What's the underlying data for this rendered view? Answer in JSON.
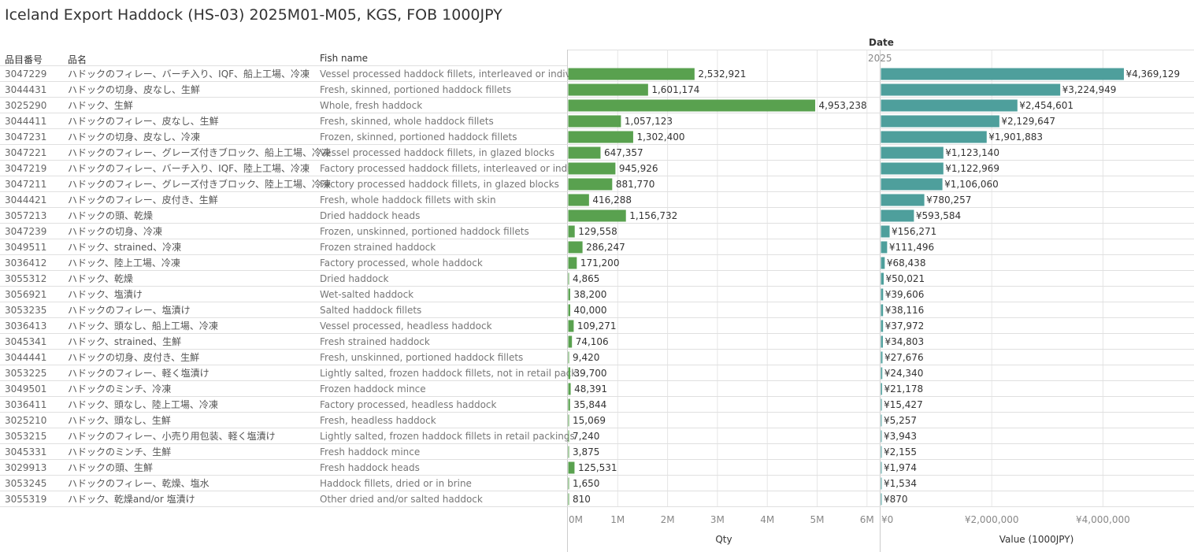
{
  "title": "Iceland Export Haddock (HS-03) 2025M01-M05, KGS, FOB 1000JPY",
  "headers": {
    "code": "品目番号",
    "name_ja": "品名",
    "fish_name": "Fish name",
    "date": "Date",
    "year": "2025"
  },
  "colors": {
    "qty_bar": "#59a14f",
    "value_bar": "#4e9f9c",
    "gridline": "#e6e6e6",
    "row_divider": "#e0e0e0"
  },
  "chart_data": [
    {
      "type": "bar",
      "orientation": "horizontal",
      "xlabel": "Qty",
      "xlim": [
        0,
        6200000
      ],
      "ticks": [
        {
          "v": 0,
          "label": "0M"
        },
        {
          "v": 1000000,
          "label": "1M"
        },
        {
          "v": 2000000,
          "label": "2M"
        },
        {
          "v": 3000000,
          "label": "3M"
        },
        {
          "v": 4000000,
          "label": "4M"
        },
        {
          "v": 5000000,
          "label": "5M"
        },
        {
          "v": 6000000,
          "label": "6M"
        }
      ],
      "grid": true
    },
    {
      "type": "bar",
      "orientation": "horizontal",
      "xlabel": "Value (1000JPY)",
      "xlim": [
        0,
        5600000
      ],
      "ticks": [
        {
          "v": 0,
          "label": "¥0"
        },
        {
          "v": 2000000,
          "label": "¥2,000,000"
        },
        {
          "v": 4000000,
          "label": "¥4,000,000"
        }
      ],
      "grid": true
    }
  ],
  "rows": [
    {
      "code": "3047229",
      "name_ja": "ハドックのフィレー、バーチ入り、IQF、船上工場、冷凍",
      "fish": "Vessel processed haddock fillets, interleaved or indivi..",
      "qty": 2532921,
      "qty_label": "2,532,921",
      "value": 4369129,
      "value_label": "¥4,369,129"
    },
    {
      "code": "3044431",
      "name_ja": "ハドックの切身、皮なし、生鮮",
      "fish": "Fresh, skinned, portioned haddock fillets",
      "qty": 1601174,
      "qty_label": "1,601,174",
      "value": 3224949,
      "value_label": "¥3,224,949"
    },
    {
      "code": "3025290",
      "name_ja": "ハドック、生鮮",
      "fish": "Whole, fresh haddock",
      "qty": 4953238,
      "qty_label": "4,953,238",
      "value": 2454601,
      "value_label": "¥2,454,601"
    },
    {
      "code": "3044411",
      "name_ja": "ハドックのフィレー、皮なし、生鮮",
      "fish": "Fresh, skinned, whole haddock fillets",
      "qty": 1057123,
      "qty_label": "1,057,123",
      "value": 2129647,
      "value_label": "¥2,129,647"
    },
    {
      "code": "3047231",
      "name_ja": "ハドックの切身、皮なし、冷凍",
      "fish": "Frozen, skinned, portioned haddock fillets",
      "qty": 1302400,
      "qty_label": "1,302,400",
      "value": 1901883,
      "value_label": "¥1,901,883"
    },
    {
      "code": "3047221",
      "name_ja": "ハドックのフィレー、グレーズ付きブロック、船上工場、冷凍",
      "fish": "Vessel processed haddock fillets, in glazed blocks",
      "qty": 647357,
      "qty_label": "647,357",
      "value": 1123140,
      "value_label": "¥1,123,140"
    },
    {
      "code": "3047219",
      "name_ja": "ハドックのフィレー、バーチ入り、IQF、陸上工場、冷凍",
      "fish": "Factory processed haddock fillets, interleaved or indiv..",
      "qty": 945926,
      "qty_label": "945,926",
      "value": 1122969,
      "value_label": "¥1,122,969"
    },
    {
      "code": "3047211",
      "name_ja": "ハドックのフィレー、グレーズ付きブロック、陸上工場、冷凍",
      "fish": "Factory processed haddock fillets, in glazed blocks",
      "qty": 881770,
      "qty_label": "881,770",
      "value": 1106060,
      "value_label": "¥1,106,060"
    },
    {
      "code": "3044421",
      "name_ja": "ハドックのフィレー、皮付き、生鮮",
      "fish": "Fresh, whole haddock fillets with skin",
      "qty": 416288,
      "qty_label": "416,288",
      "value": 780257,
      "value_label": "¥780,257"
    },
    {
      "code": "3057213",
      "name_ja": "ハドックの頭、乾燥",
      "fish": "Dried haddock heads",
      "qty": 1156732,
      "qty_label": "1,156,732",
      "value": 593584,
      "value_label": "¥593,584"
    },
    {
      "code": "3047239",
      "name_ja": "ハドックの切身、冷凍",
      "fish": "Frozen, unskinned, portioned haddock fillets",
      "qty": 129558,
      "qty_label": "129,558",
      "value": 156271,
      "value_label": "¥156,271"
    },
    {
      "code": "3049511",
      "name_ja": "ハドック、strained、冷凍",
      "fish": "Frozen strained haddock",
      "qty": 286247,
      "qty_label": "286,247",
      "value": 111496,
      "value_label": "¥111,496"
    },
    {
      "code": "3036412",
      "name_ja": "ハドック、陸上工場、冷凍",
      "fish": "Factory processed, whole haddock",
      "qty": 171200,
      "qty_label": "171,200",
      "value": 68438,
      "value_label": "¥68,438"
    },
    {
      "code": "3055312",
      "name_ja": "ハドック、乾燥",
      "fish": "Dried haddock",
      "qty": 4865,
      "qty_label": "4,865",
      "value": 50021,
      "value_label": "¥50,021"
    },
    {
      "code": "3056921",
      "name_ja": "ハドック、塩漬け",
      "fish": "Wet-salted haddock",
      "qty": 38200,
      "qty_label": "38,200",
      "value": 39606,
      "value_label": "¥39,606"
    },
    {
      "code": "3053235",
      "name_ja": "ハドックのフィレー、塩漬け",
      "fish": "Salted haddock fillets",
      "qty": 40000,
      "qty_label": "40,000",
      "value": 38116,
      "value_label": "¥38,116"
    },
    {
      "code": "3036413",
      "name_ja": "ハドック、頭なし、船上工場、冷凍",
      "fish": "Vessel processed, headless haddock",
      "qty": 109271,
      "qty_label": "109,271",
      "value": 37972,
      "value_label": "¥37,972"
    },
    {
      "code": "3045341",
      "name_ja": "ハドック、strained、生鮮",
      "fish": "Fresh strained haddock",
      "qty": 74106,
      "qty_label": "74,106",
      "value": 34803,
      "value_label": "¥34,803"
    },
    {
      "code": "3044441",
      "name_ja": "ハドックの切身、皮付き、生鮮",
      "fish": "Fresh, unskinned, portioned haddock fillets",
      "qty": 9420,
      "qty_label": "9,420",
      "value": 27676,
      "value_label": "¥27,676"
    },
    {
      "code": "3053225",
      "name_ja": "ハドックのフィレー、軽く塩漬け",
      "fish": "Lightly salted, frozen haddock fillets, not in retail pack..",
      "qty": 39700,
      "qty_label": "39,700",
      "value": 24340,
      "value_label": "¥24,340"
    },
    {
      "code": "3049501",
      "name_ja": "ハドックのミンチ、冷凍",
      "fish": "Frozen haddock mince",
      "qty": 48391,
      "qty_label": "48,391",
      "value": 21178,
      "value_label": "¥21,178"
    },
    {
      "code": "3036411",
      "name_ja": "ハドック、頭なし、陸上工場、冷凍",
      "fish": "Factory processed, headless haddock",
      "qty": 35844,
      "qty_label": "35,844",
      "value": 15427,
      "value_label": "¥15,427"
    },
    {
      "code": "3025210",
      "name_ja": "ハドック、頭なし、生鮮",
      "fish": "Fresh, headless haddock",
      "qty": 15069,
      "qty_label": "15,069",
      "value": 5257,
      "value_label": "¥5,257"
    },
    {
      "code": "3053215",
      "name_ja": "ハドックのフィレー、小売り用包装、軽く塩漬け",
      "fish": "Lightly salted, frozen haddock fillets in retail packings",
      "qty": 7240,
      "qty_label": "7,240",
      "value": 3943,
      "value_label": "¥3,943"
    },
    {
      "code": "3045331",
      "name_ja": "ハドックのミンチ、生鮮",
      "fish": "Fresh haddock mince",
      "qty": 3875,
      "qty_label": "3,875",
      "value": 2155,
      "value_label": "¥2,155"
    },
    {
      "code": "3029913",
      "name_ja": "ハドックの頭、生鮮",
      "fish": "Fresh haddock heads",
      "qty": 125531,
      "qty_label": "125,531",
      "value": 1974,
      "value_label": "¥1,974"
    },
    {
      "code": "3053245",
      "name_ja": "ハドックのフィレー、乾燥、塩水",
      "fish": "Haddock fillets, dried or in brine",
      "qty": 1650,
      "qty_label": "1,650",
      "value": 1534,
      "value_label": "¥1,534"
    },
    {
      "code": "3055319",
      "name_ja": "ハドック、乾燥and/or 塩漬け",
      "fish": "Other dried and/or salted haddock",
      "qty": 810,
      "qty_label": "810",
      "value": 870,
      "value_label": "¥870"
    }
  ]
}
